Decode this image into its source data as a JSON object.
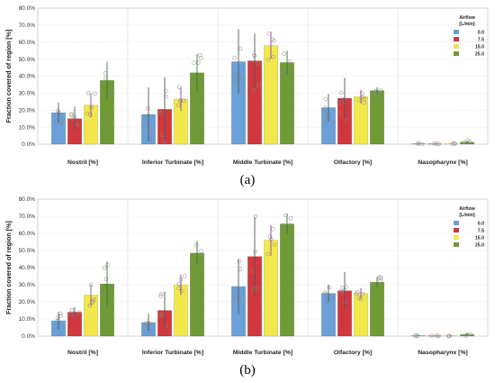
{
  "chart_data": [
    {
      "type": "bar",
      "panel_label": "(a)",
      "categories": [
        "Nostril [%]",
        "Inferior Turbinate [%]",
        "Middle Turbinate [%]",
        "Olfactory [%]",
        "Nasopharynx [%]"
      ],
      "series": [
        {
          "name": "0.0",
          "color": "#6a9fd8",
          "values": [
            0.185,
            0.175,
            0.485,
            0.215,
            0.003
          ],
          "err": [
            0.06,
            0.16,
            0.19,
            0.08,
            0.003
          ]
        },
        {
          "name": "7.5",
          "color": "#d0383d",
          "values": [
            0.15,
            0.205,
            0.49,
            0.27,
            0.002
          ],
          "err": [
            0.07,
            0.19,
            0.16,
            0.12,
            0.002
          ]
        },
        {
          "name": "15.0",
          "color": "#f2e84b",
          "values": [
            0.23,
            0.265,
            0.58,
            0.28,
            0.003
          ],
          "err": [
            0.07,
            0.07,
            0.08,
            0.04,
            0.003
          ]
        },
        {
          "name": "25.0",
          "color": "#6f9a35",
          "values": [
            0.375,
            0.42,
            0.48,
            0.315,
            0.012
          ],
          "err": [
            0.11,
            0.11,
            0.07,
            0.02,
            0.01
          ]
        }
      ],
      "ylabel": "Fraction covered of region [%]",
      "ylim": [
        0,
        0.8
      ],
      "yticks": [
        "0.0%",
        "10.0%",
        "20.0%",
        "30.0%",
        "40.0%",
        "50.0%",
        "60.0%",
        "70.0%",
        "80.0%"
      ],
      "legend": {
        "title_line1": "Airflow",
        "title_line2": "[L/min]",
        "placement": "top-right"
      },
      "grid": true
    },
    {
      "type": "bar",
      "panel_label": "(b)",
      "categories": [
        "Nostril [%]",
        "Inferior Turbinate [%]",
        "Middle Turbinate [%]",
        "Olfactory [%]",
        "Nasopharynx [%]"
      ],
      "series": [
        {
          "name": "0.0",
          "color": "#6a9fd8",
          "values": [
            0.09,
            0.08,
            0.29,
            0.25,
            0.003
          ],
          "err": [
            0.05,
            0.05,
            0.16,
            0.05,
            0.003
          ]
        },
        {
          "name": "7.5",
          "color": "#d0383d",
          "values": [
            0.14,
            0.15,
            0.465,
            0.265,
            0.002
          ],
          "err": [
            0.03,
            0.11,
            0.23,
            0.11,
            0.002
          ]
        },
        {
          "name": "15.0",
          "color": "#f2e84b",
          "values": [
            0.24,
            0.3,
            0.56,
            0.25,
            0.003
          ],
          "err": [
            0.06,
            0.06,
            0.09,
            0.03,
            0.003
          ]
        },
        {
          "name": "25.0",
          "color": "#6f9a35",
          "values": [
            0.305,
            0.485,
            0.655,
            0.315,
            0.01
          ],
          "err": [
            0.13,
            0.07,
            0.06,
            0.03,
            0.008
          ]
        }
      ],
      "ylabel": "Fraction covered of region [%]",
      "ylim": [
        0,
        0.8
      ],
      "yticks": [
        "0.0%",
        "10.0%",
        "20.0%",
        "30.0%",
        "40.0%",
        "50.0%",
        "60.0%",
        "70.0%",
        "80.0%"
      ],
      "legend": {
        "title_line1": "Airflow",
        "title_line2": "[L/min]",
        "placement": "top-right"
      },
      "grid": true
    }
  ]
}
